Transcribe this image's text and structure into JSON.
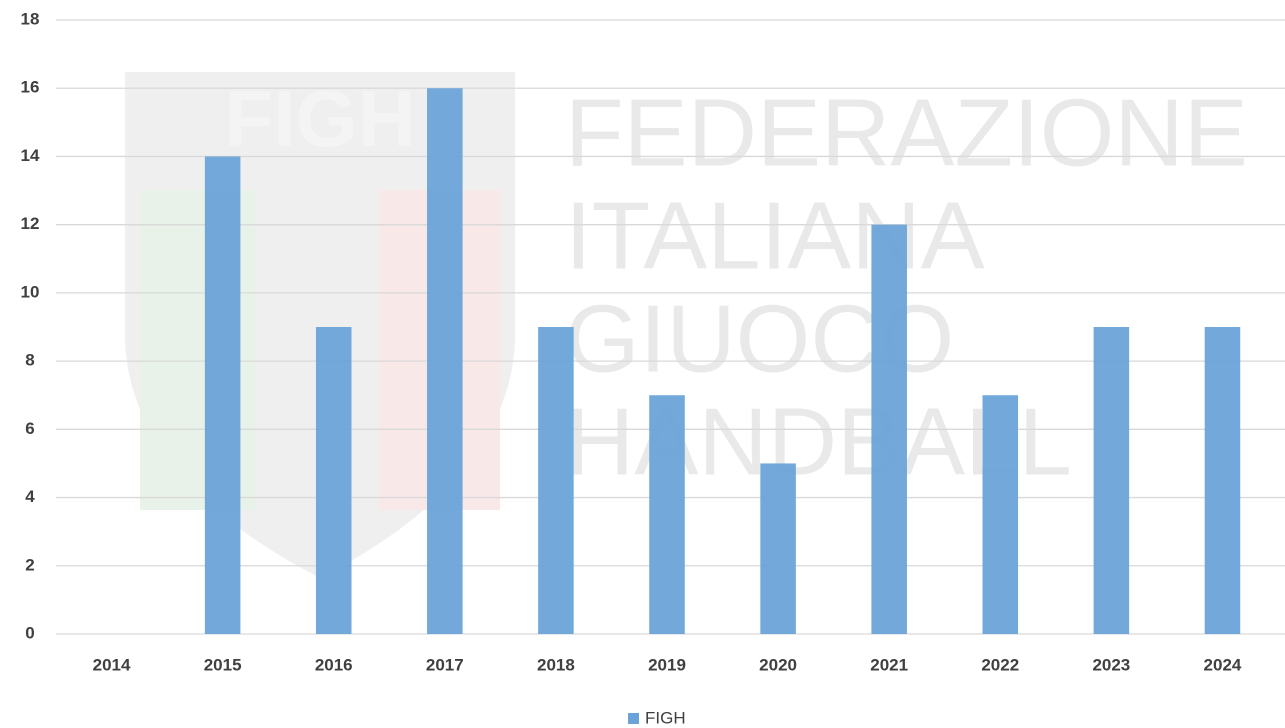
{
  "chart_data": {
    "type": "bar",
    "categories": [
      "2014",
      "2015",
      "2016",
      "2017",
      "2018",
      "2019",
      "2020",
      "2021",
      "2022",
      "2023",
      "2024"
    ],
    "series": [
      {
        "name": "FIGH",
        "color": "#6aa3d8",
        "values": [
          0,
          14,
          9,
          16,
          9,
          7,
          5,
          12,
          7,
          9,
          9
        ]
      }
    ],
    "ylim": [
      0,
      18
    ],
    "yticks": [
      0,
      2,
      4,
      6,
      8,
      10,
      12,
      14,
      16,
      18
    ],
    "grid": true,
    "legend": "bottom",
    "watermark": {
      "logo": "FIGH",
      "lines": [
        "FEDERAZIONE",
        "ITALIANA",
        "GIUOCO",
        "HANDBALL"
      ]
    }
  }
}
